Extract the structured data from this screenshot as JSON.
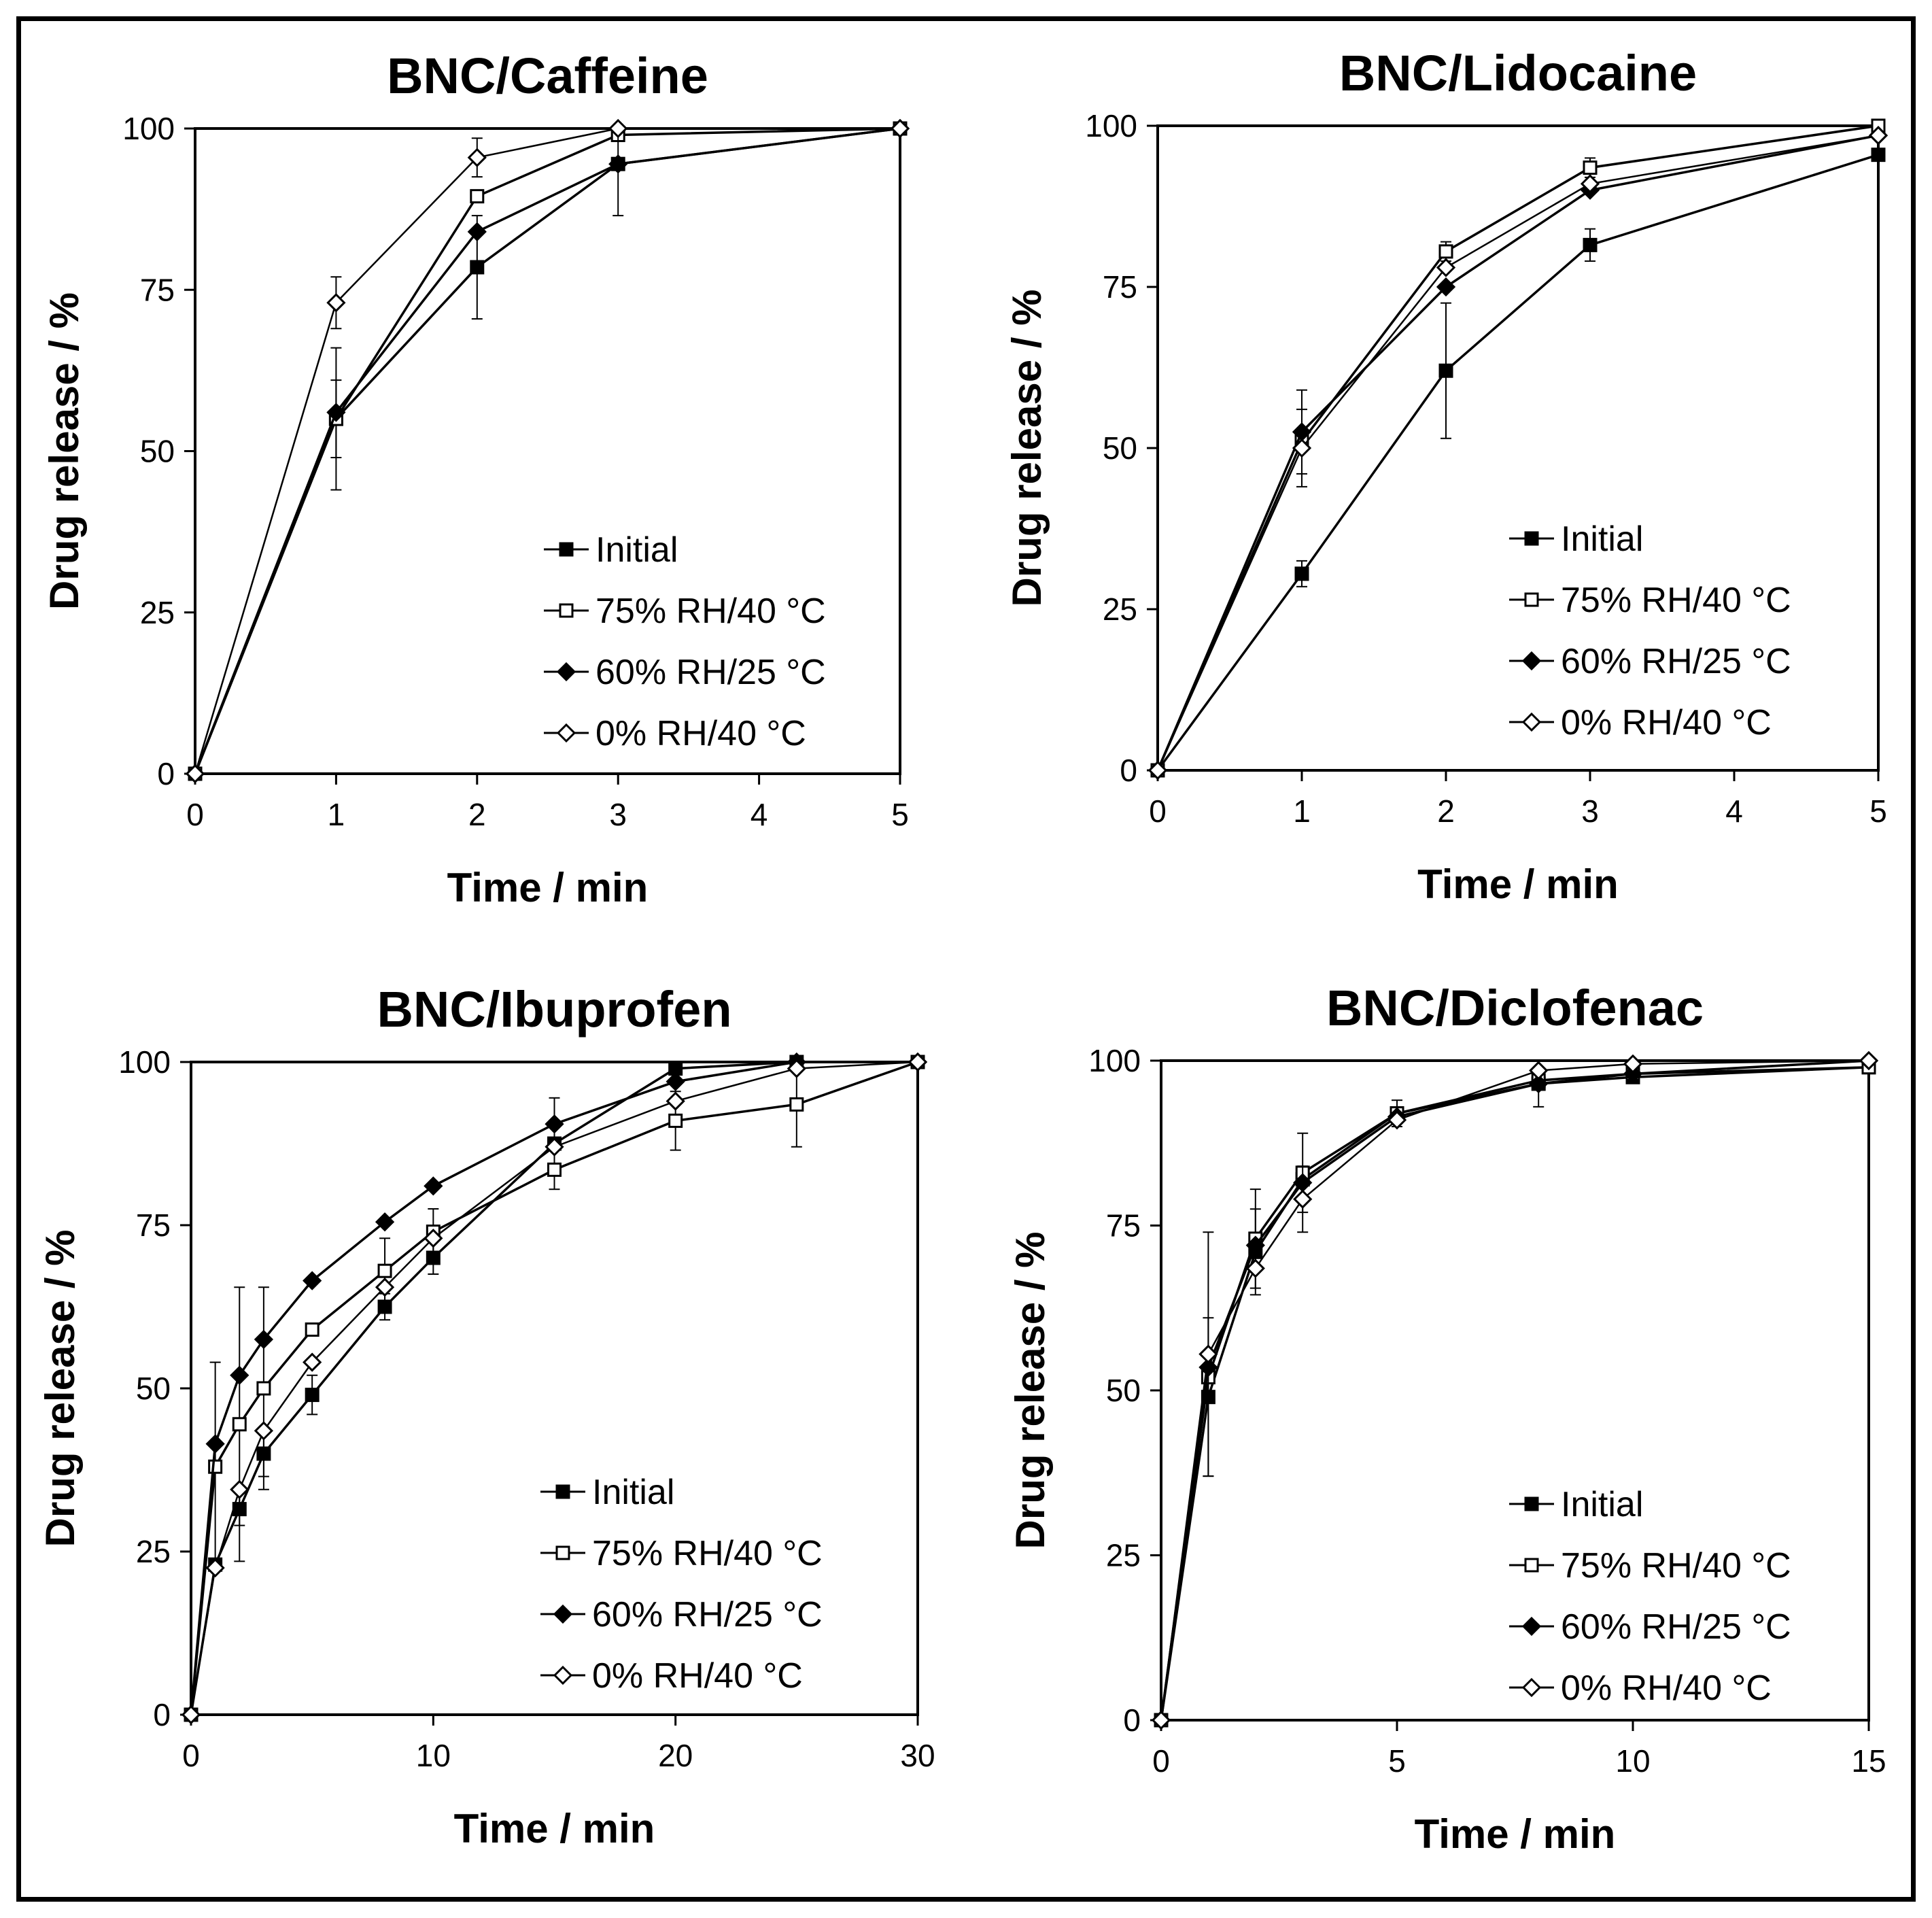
{
  "chart_data": [
    {
      "type": "line",
      "title": "BNC/Caffeine",
      "xlabel": "Time / min",
      "ylabel": "Drug release / %",
      "xlim": [
        0,
        5
      ],
      "ylim": [
        0,
        100
      ],
      "x_ticks": [
        0,
        1,
        2,
        3,
        4,
        5
      ],
      "y_ticks": [
        0,
        25,
        50,
        75,
        100
      ],
      "legend_position": "bottom-right",
      "series": [
        {
          "name": "Initial",
          "marker": "filled-square",
          "x": [
            0,
            1,
            2,
            3,
            5
          ],
          "y": [
            0,
            55,
            78.5,
            94.5,
            100
          ],
          "err": [
            0,
            6,
            8,
            0,
            0
          ]
        },
        {
          "name": "75% RH/40 °C",
          "marker": "open-square",
          "x": [
            0,
            1,
            2,
            3,
            5
          ],
          "y": [
            0,
            55,
            89.5,
            99,
            100
          ],
          "err": [
            0,
            11,
            0,
            0,
            0
          ]
        },
        {
          "name": "60% RH/25 °C",
          "marker": "filled-diamond",
          "x": [
            0,
            1,
            2,
            3,
            5
          ],
          "y": [
            0,
            56,
            84,
            94.5,
            100
          ],
          "err": [
            0,
            0,
            0,
            8,
            0
          ]
        },
        {
          "name": "0% RH/40 °C",
          "marker": "open-diamond",
          "x": [
            0,
            1,
            2,
            3,
            5
          ],
          "y": [
            0,
            73,
            95.5,
            100,
            100
          ],
          "err": [
            0,
            4,
            3,
            0,
            0
          ]
        }
      ]
    },
    {
      "type": "line",
      "title": "BNC/Lidocaine",
      "xlabel": "Time / min",
      "ylabel": "Drug release / %",
      "xlim": [
        0,
        5
      ],
      "ylim": [
        0,
        100
      ],
      "x_ticks": [
        0,
        1,
        2,
        3,
        4,
        5
      ],
      "y_ticks": [
        0,
        25,
        50,
        75,
        100
      ],
      "legend_position": "bottom-right",
      "series": [
        {
          "name": "Initial",
          "marker": "filled-square",
          "x": [
            0,
            1,
            2,
            3,
            5
          ],
          "y": [
            0,
            30.5,
            62,
            81.5,
            95.5
          ],
          "err": [
            0,
            2,
            10.5,
            2.5,
            0
          ]
        },
        {
          "name": "75% RH/40 °C",
          "marker": "open-square",
          "x": [
            0,
            1,
            2,
            3,
            5
          ],
          "y": [
            0,
            51,
            80.5,
            93.5,
            100
          ],
          "err": [
            0,
            0,
            1.5,
            1.5,
            0
          ]
        },
        {
          "name": "60% RH/25 °C",
          "marker": "filled-diamond",
          "x": [
            0,
            1,
            2,
            3,
            5
          ],
          "y": [
            0,
            52.5,
            75,
            90,
            98.5
          ],
          "err": [
            0,
            6.5,
            0,
            0,
            0
          ]
        },
        {
          "name": "0% RH/40 °C",
          "marker": "open-diamond",
          "x": [
            0,
            1,
            2,
            3,
            5
          ],
          "y": [
            0,
            50,
            78,
            91,
            98.5
          ],
          "err": [
            0,
            6,
            0,
            0,
            0
          ]
        }
      ]
    },
    {
      "type": "line",
      "title": "BNC/Ibuprofen",
      "xlabel": "Time / min",
      "ylabel": "Drug release / %",
      "xlim": [
        0,
        30
      ],
      "ylim": [
        0,
        100
      ],
      "x_ticks": [
        0,
        10,
        20,
        30
      ],
      "y_ticks": [
        0,
        25,
        50,
        75,
        100
      ],
      "legend_position": "bottom-right",
      "series": [
        {
          "name": "Initial",
          "marker": "filled-square",
          "x": [
            0,
            1,
            2,
            3,
            5,
            8,
            10,
            15,
            20,
            25,
            30
          ],
          "y": [
            0,
            23,
            31.5,
            40,
            49,
            62.5,
            70,
            87.5,
            99,
            100,
            100
          ],
          "err": [
            0,
            0,
            2.5,
            3.5,
            3,
            2,
            2.5,
            0,
            0,
            0,
            0
          ]
        },
        {
          "name": "75% RH/40 °C",
          "marker": "open-square",
          "x": [
            0,
            1,
            2,
            3,
            5,
            8,
            10,
            15,
            20,
            25,
            30
          ],
          "y": [
            0,
            38,
            44.5,
            50,
            59,
            68,
            74,
            83.5,
            91,
            93.5,
            100
          ],
          "err": [
            0,
            16,
            21,
            15.5,
            0,
            5,
            3.5,
            3,
            4.5,
            6.5,
            0
          ]
        },
        {
          "name": "60% RH/25 °C",
          "marker": "filled-diamond",
          "x": [
            0,
            1,
            2,
            3,
            5,
            8,
            10,
            15,
            20,
            25,
            30
          ],
          "y": [
            0,
            41.5,
            52,
            57.5,
            66.5,
            75.5,
            81,
            90.5,
            97,
            100,
            100
          ],
          "err": [
            0,
            0,
            0,
            0,
            0,
            0,
            0,
            4,
            0,
            0,
            0
          ]
        },
        {
          "name": "0% RH/40 °C",
          "marker": "open-diamond",
          "x": [
            0,
            1,
            2,
            3,
            5,
            8,
            10,
            15,
            20,
            25,
            30
          ],
          "y": [
            0,
            22.5,
            34.5,
            43.5,
            54,
            65.5,
            73,
            87,
            94,
            99,
            100
          ],
          "err": [
            0,
            0,
            0,
            0,
            0,
            0,
            0,
            0,
            0,
            0,
            0
          ]
        }
      ]
    },
    {
      "type": "line",
      "title": "BNC/Diclofenac",
      "xlabel": "Time / min",
      "ylabel": "Drug release / %",
      "xlim": [
        0,
        15
      ],
      "ylim": [
        0,
        100
      ],
      "x_ticks": [
        0,
        5,
        10,
        15
      ],
      "y_ticks": [
        0,
        25,
        50,
        75,
        100
      ],
      "legend_position": "bottom-right",
      "series": [
        {
          "name": "Initial",
          "marker": "filled-square",
          "x": [
            0,
            1,
            2,
            3,
            5,
            8,
            10,
            15
          ],
          "y": [
            0,
            49,
            71,
            82,
            92,
            96.5,
            97.5,
            99
          ],
          "err": [
            0,
            12,
            6.5,
            0,
            2,
            3.5,
            0,
            0
          ]
        },
        {
          "name": "75% RH/40 °C",
          "marker": "open-square",
          "x": [
            0,
            1,
            2,
            3,
            5,
            8,
            10,
            15
          ],
          "y": [
            0,
            52,
            73,
            83,
            92,
            97,
            98,
            99
          ],
          "err": [
            0,
            0,
            7.5,
            6,
            0,
            0,
            0,
            0
          ]
        },
        {
          "name": "60% RH/25 °C",
          "marker": "filled-diamond",
          "x": [
            0,
            1,
            2,
            3,
            5,
            8,
            10,
            15
          ],
          "y": [
            0,
            53.5,
            72,
            81.5,
            91.5,
            96.5,
            98,
            100
          ],
          "err": [
            0,
            0,
            0,
            0,
            0,
            0,
            0,
            0
          ]
        },
        {
          "name": "0% RH/40 °C",
          "marker": "open-diamond",
          "x": [
            0,
            1,
            2,
            3,
            5,
            8,
            10,
            15
          ],
          "y": [
            0,
            55.5,
            68.5,
            79,
            91,
            98.5,
            99.5,
            100
          ],
          "err": [
            0,
            18.5,
            0,
            5,
            0,
            0,
            0,
            0
          ]
        }
      ]
    }
  ]
}
